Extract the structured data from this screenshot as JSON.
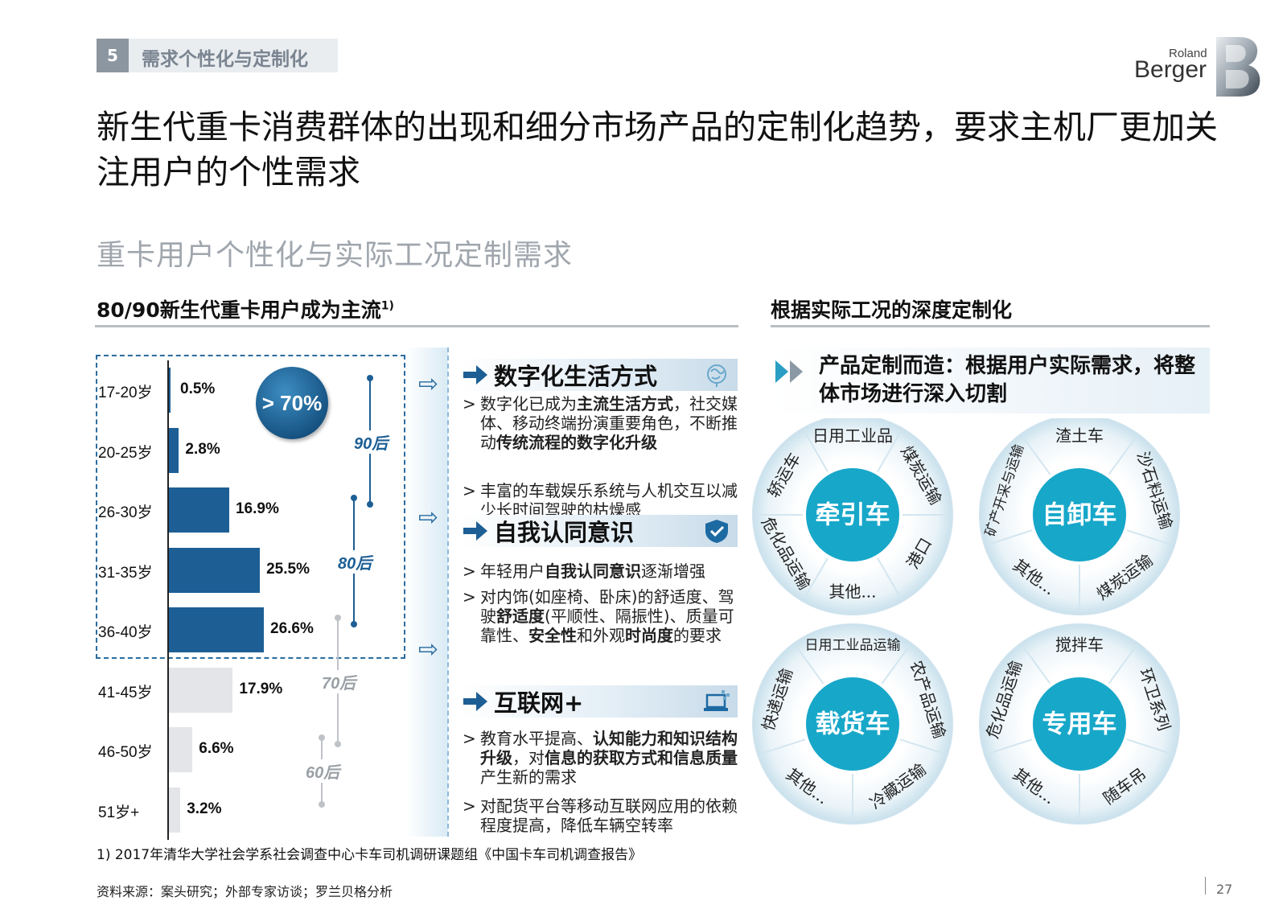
{
  "header": {
    "section_number": "5",
    "section_title": "需求个性化与定制化",
    "logo_roland": "Roland",
    "logo_berger": "Berger"
  },
  "title": "新生代重卡消费群体的出现和细分市场产品的定制化趋势，要求主机厂更加关注用户的个性需求",
  "subtitle": "重卡用户个性化与实际工况定制需求",
  "left_heading": "80/90新生代重卡用户成为主流",
  "left_heading_sup": "1)",
  "right_heading": "根据实际工况的深度定制化",
  "chart_data": {
    "type": "bar",
    "orientation": "horizontal",
    "categories": [
      "17-20岁",
      "20-25岁",
      "26-30岁",
      "31-35岁",
      "36-40岁",
      "41-45岁",
      "46-50岁",
      "51岁+"
    ],
    "values": [
      0.5,
      2.8,
      16.9,
      25.5,
      26.6,
      17.9,
      6.6,
      3.2
    ],
    "value_labels": [
      "0.5%",
      "2.8%",
      "16.9%",
      "25.5%",
      "26.6%",
      "17.9%",
      "6.6%",
      "3.2%"
    ],
    "highlighted": [
      true,
      true,
      true,
      true,
      true,
      false,
      false,
      false
    ],
    "colors": {
      "highlight": "#1d5f95",
      "other": "#e3e5e8"
    },
    "callout": "> 70%",
    "generations": [
      {
        "label": "90后",
        "from": 0,
        "to": 2,
        "color": "#1d5f95"
      },
      {
        "label": "80后",
        "from": 2,
        "to": 4,
        "color": "#1d5f95"
      },
      {
        "label": "70后",
        "from": 4,
        "to": 6,
        "color": "#bfc3c8"
      },
      {
        "label": "60后",
        "from": 6,
        "to": 7,
        "color": "#bfc3c8"
      }
    ]
  },
  "topics": [
    {
      "title": "数字化生活方式",
      "icon": "brain-icon",
      "bullets": [
        [
          {
            "t": "数字化已成为",
            "b": false
          },
          {
            "t": "主流生活方式",
            "b": true
          },
          {
            "t": "，社交媒体、移动终端扮演重要角色，不断推动",
            "b": false
          },
          {
            "t": "传统流程的数字化升级",
            "b": true
          }
        ],
        [
          {
            "t": "丰富的车载娱乐系统与人机交互以减少长时间驾驶的枯燥感",
            "b": false
          }
        ]
      ]
    },
    {
      "title": "自我认同意识",
      "icon": "shield-check-icon",
      "bullets": [
        [
          {
            "t": "年轻用户",
            "b": false
          },
          {
            "t": "自我认同意识",
            "b": true
          },
          {
            "t": "逐渐增强",
            "b": false
          }
        ],
        [
          {
            "t": "对内饰(如座椅、卧床)的舒适度、驾驶",
            "b": false
          },
          {
            "t": "舒适度",
            "b": true
          },
          {
            "t": "(平顺性、隔振性)、质量可靠性、",
            "b": false
          },
          {
            "t": "安全性",
            "b": true
          },
          {
            "t": "和外观",
            "b": false
          },
          {
            "t": "时尚度",
            "b": true
          },
          {
            "t": "的要求",
            "b": false
          }
        ]
      ]
    },
    {
      "title": "互联网+",
      "icon": "laptop-network-icon",
      "bullets": [
        [
          {
            "t": "教育水平提高、",
            "b": false
          },
          {
            "t": "认知能力和知识结构升级",
            "b": true
          },
          {
            "t": "，对",
            "b": false
          },
          {
            "t": "信息的获取方式和信息质量",
            "b": true
          },
          {
            "t": "产生新的需求",
            "b": false
          }
        ],
        [
          {
            "t": "对配货平台等移动互联网应用的依赖程度提高，降低车辆空转率",
            "b": false
          }
        ]
      ]
    }
  ],
  "intro_text": "产品定制而造：根据用户实际需求，将整体市场进行深入切割",
  "wheels": [
    {
      "center": "牵引车",
      "segments": [
        "日用工业品",
        "煤炭运输",
        "港口",
        "其他...",
        "危化品运输",
        "轿运车"
      ]
    },
    {
      "center": "自卸车",
      "segments": [
        "渣土车",
        "沙石料运输",
        "煤炭运输",
        "其他...",
        "矿产开采与运输"
      ]
    },
    {
      "center": "载货车",
      "segments": [
        "日用工业品运输",
        "农产品运输",
        "冷藏运输",
        "其他...",
        "快递运输"
      ]
    },
    {
      "center": "专用车",
      "segments": [
        "搅拌车",
        "环卫系列",
        "随车吊",
        "其他...",
        "危化品运输"
      ]
    }
  ],
  "footnote": "1) 2017年清华大学社会学系社会调查中心卡车司机调研课题组《中国卡车司机调查报告》",
  "source": "资料来源：案头研究；外部专家访谈；罗兰贝格分析",
  "page_number": "27"
}
